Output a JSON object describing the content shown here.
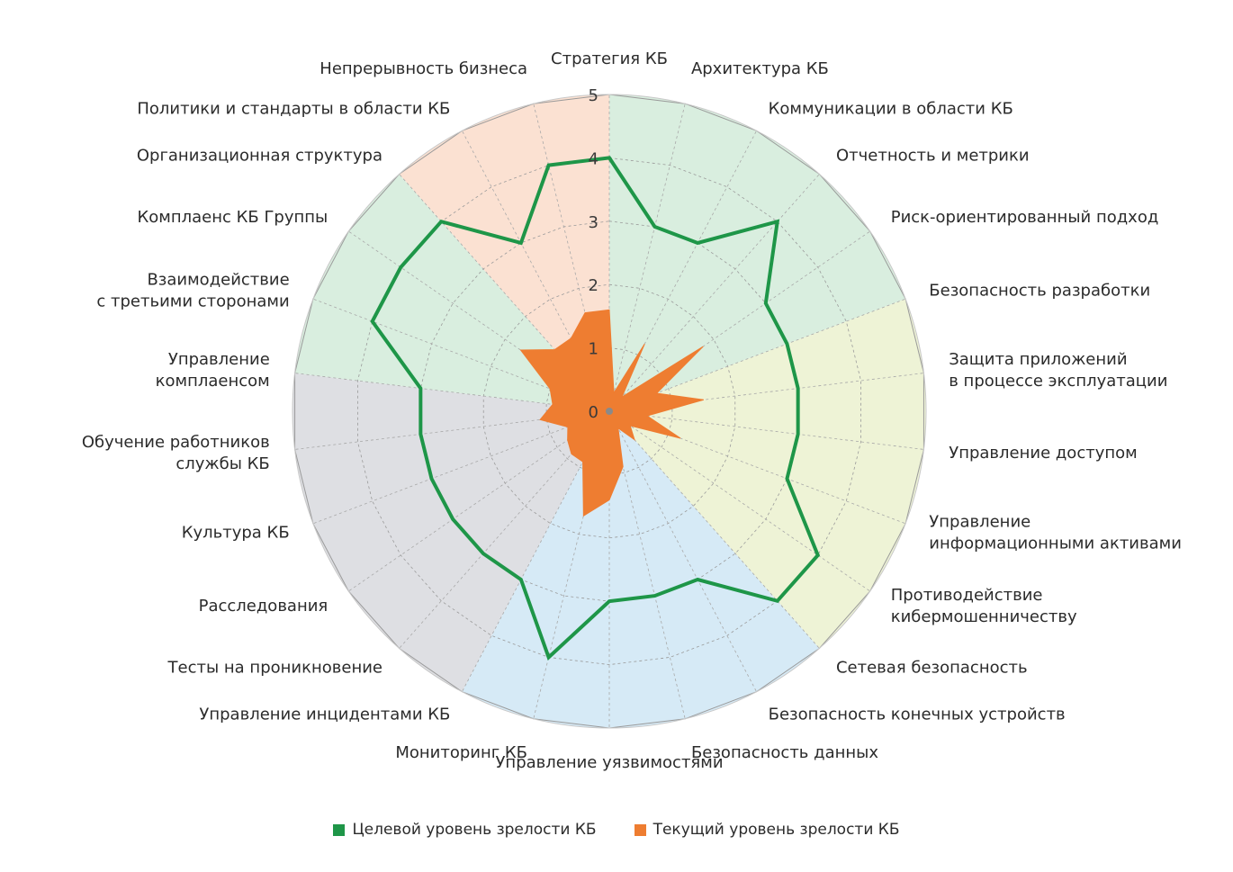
{
  "chart_data": {
    "type": "radar",
    "title": "",
    "rlim": [
      0,
      5
    ],
    "ticks": [
      "0",
      "1",
      "2",
      "3",
      "4",
      "5"
    ],
    "grid": true,
    "legend_position": "bottom",
    "categories": [
      [
        "Стратегия КБ"
      ],
      [
        "Архитектура КБ"
      ],
      [
        "Коммуникации в области КБ"
      ],
      [
        "Отчетность и метрики"
      ],
      [
        "Риск-ориентированный подход"
      ],
      [
        "Безопасность разработки"
      ],
      [
        "Защита приложений",
        "в процессе эксплуатации"
      ],
      [
        "Управление доступом"
      ],
      [
        "Управление",
        "информационными активами"
      ],
      [
        "Противодействие",
        "кибермошенничеству"
      ],
      [
        "Сетевая безопасность"
      ],
      [
        "Безопасность конечных устройств"
      ],
      [
        "Безопасность данных"
      ],
      [
        "Управление уязвимостями"
      ],
      [
        "Мониторинг КБ"
      ],
      [
        "Управление инцидентами КБ"
      ],
      [
        "Тесты на проникновение"
      ],
      [
        "Расследования"
      ],
      [
        "Культура КБ"
      ],
      [
        "Обучение работников",
        "службы КБ"
      ],
      [
        "Управление",
        "комплаенсом"
      ],
      [
        "Взаимодействие",
        "с третьими сторонами"
      ],
      [
        "Комплаенс КБ Группы"
      ],
      [
        "Организационная структура"
      ],
      [
        "Политики и стандарты в области КБ"
      ],
      [
        "Непрерывность бизнеса"
      ]
    ],
    "series": [
      {
        "name": "Целевой уровень зрелости КБ",
        "color": "#1e9648",
        "values": [
          4,
          3,
          3,
          4,
          3,
          3,
          3,
          3,
          3,
          4,
          4,
          3,
          3,
          3,
          4,
          3,
          3,
          3,
          3,
          3,
          3,
          4,
          4,
          4,
          3,
          4
        ]
      },
      {
        "name": "Текущий уровень зрелости КБ",
        "color": "#ee7d31",
        "values": [
          1.6,
          0.3,
          1.2,
          0.3,
          1.8,
          0.8,
          1.5,
          0.6,
          1.2,
          0.4,
          0.6,
          0.3,
          0.9,
          1.4,
          1.7,
          0.9,
          0.9,
          0.8,
          0.7,
          1.1,
          0.9,
          1.0,
          1.7,
          1.3,
          1.3,
          1.6
        ]
      }
    ],
    "sectors": [
      {
        "from": 0,
        "to": 5,
        "color": "#d9eedf"
      },
      {
        "from": 5,
        "to": 10,
        "color": "#eef3d6"
      },
      {
        "from": 10,
        "to": 15,
        "color": "#d6eaf6"
      },
      {
        "from": 15,
        "to": 20,
        "color": "#dedfe3"
      },
      {
        "from": 20,
        "to": 23,
        "color": "#d9eedf"
      },
      {
        "from": 23,
        "to": 26,
        "color": "#fbe1d2"
      }
    ]
  },
  "legend": {
    "items": [
      {
        "label": "Целевой уровень зрелости КБ",
        "color": "#1e9648"
      },
      {
        "label": "Текущий уровень зрелости КБ",
        "color": "#ee7d31"
      }
    ]
  }
}
